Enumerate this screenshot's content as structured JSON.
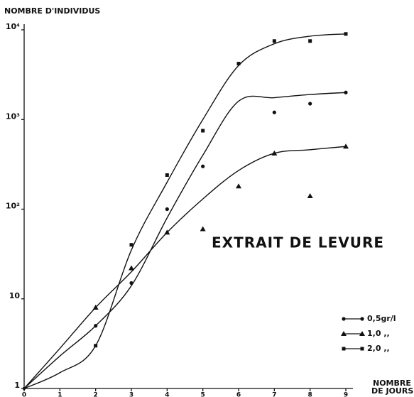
{
  "chart_data": {
    "type": "scatter",
    "ylabel": "NOMBRE D'INDIVIDUS",
    "xlabel": [
      "NOMBRE",
      "DE JOURS"
    ],
    "annotation": "EXTRAIT DE LEVURE",
    "x": [
      0,
      1,
      2,
      3,
      4,
      5,
      6,
      7,
      8,
      9
    ],
    "xlim": [
      0,
      9
    ],
    "xticks": [
      0,
      1,
      2,
      3,
      4,
      5,
      6,
      7,
      8,
      9
    ],
    "ylim": [
      1,
      10000
    ],
    "log_y": true,
    "yticks": [
      1,
      10,
      {
        "value": 100,
        "label": "10²"
      },
      {
        "value": 1000,
        "label": "10³"
      },
      {
        "value": 10000,
        "label": "10⁴"
      }
    ],
    "series": [
      {
        "name": "0,5gr/l",
        "marker": "circle",
        "color": "#111",
        "values": [
          null,
          null,
          5,
          15,
          100,
          300,
          null,
          1200,
          1500,
          2000
        ],
        "fit": [
          1,
          2.3,
          5,
          14,
          80,
          400,
          1600,
          1750,
          1900,
          2000
        ]
      },
      {
        "name": "1,0 ,,",
        "marker": "triangle",
        "color": "#111",
        "values": [
          null,
          null,
          8,
          22,
          55,
          60,
          180,
          420,
          140,
          500
        ],
        "fit": [
          1,
          2.8,
          8,
          20,
          55,
          130,
          270,
          420,
          460,
          500
        ]
      },
      {
        "name": "2,0 ,,",
        "marker": "square",
        "color": "#111",
        "values": [
          null,
          null,
          3,
          40,
          240,
          750,
          4200,
          7500,
          7500,
          9000
        ],
        "fit": [
          1,
          1.5,
          3,
          35,
          200,
          1000,
          4000,
          7000,
          8500,
          9000
        ]
      }
    ]
  }
}
